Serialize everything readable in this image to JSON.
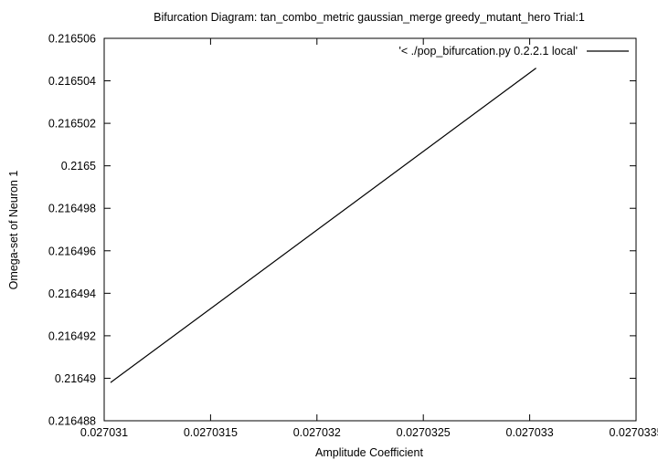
{
  "chart_data": {
    "type": "line",
    "title": "Bifurcation Diagram: tan_combo_metric gaussian_merge greedy_mutant_hero Trial:1",
    "xlabel": "Amplitude Coefficient",
    "ylabel": "Omega-set of Neuron 1",
    "xlim": [
      0.027031,
      0.0270335
    ],
    "ylim": [
      0.216488,
      0.216506
    ],
    "x_ticks": [
      "0.027031",
      "0.0270315",
      "0.027032",
      "0.0270325",
      "0.027033",
      "0.0270335"
    ],
    "y_ticks": [
      "0.216488",
      "0.21649",
      "0.216492",
      "0.216494",
      "0.216496",
      "0.216498",
      "0.2165",
      "0.216502",
      "0.216504",
      "0.216506"
    ],
    "grid": false,
    "legend_position": "top-right",
    "series": [
      {
        "name": "'< ./pop_bifurcation.py 0.2.2.1 local'",
        "color": "#000000",
        "x": [
          0.02703103,
          0.02703303
        ],
        "y": [
          0.2164898,
          0.2165046
        ]
      }
    ]
  }
}
